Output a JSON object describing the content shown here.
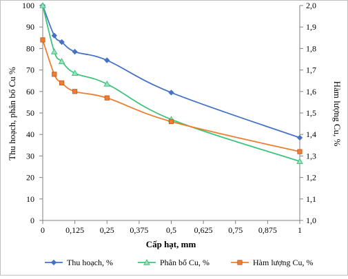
{
  "chart_data": {
    "type": "line",
    "xlabel": "Cấp hạt, mm",
    "ylabel": "Thu hoạch, phân bố Cu %",
    "y2label": "Hàm lượng Cu, %",
    "xlim": [
      0,
      1
    ],
    "ylim": [
      0,
      100
    ],
    "y2lim": [
      1.0,
      2.0
    ],
    "x_ticks": [
      "0",
      "0,125",
      "0,25",
      "0,375",
      "0,5",
      "0,625",
      "0,75",
      "0,875",
      "1"
    ],
    "y_ticks": [
      "0",
      "10",
      "20",
      "30",
      "40",
      "50",
      "60",
      "70",
      "80",
      "90",
      "100"
    ],
    "y2_ticks": [
      "1,0",
      "1,1",
      "1,2",
      "1,3",
      "1,4",
      "1,5",
      "1,6",
      "1,7",
      "1,8",
      "1,9",
      "2,0"
    ],
    "grid": false,
    "legend_position": "bottom",
    "series": [
      {
        "name": "Thu hoạch, %",
        "axis": "left",
        "color": "#4472C4",
        "marker": "diamond",
        "x": [
          0,
          0.045,
          0.074,
          0.125,
          0.25,
          0.5,
          1
        ],
        "y": [
          100,
          86,
          83,
          78.5,
          74.5,
          59.5,
          38.5
        ]
      },
      {
        "name": "Phân bố Cu, %",
        "axis": "left",
        "color": "#3CC47C",
        "marker": "triangle",
        "x": [
          0,
          0.045,
          0.074,
          0.125,
          0.25,
          0.5,
          1
        ],
        "y": [
          100,
          78.5,
          74,
          68.5,
          63.5,
          47,
          27.5
        ]
      },
      {
        "name": "Hàm lượng Cu, %",
        "axis": "right",
        "color": "#ED7D31",
        "marker": "square",
        "x": [
          0,
          0.045,
          0.074,
          0.125,
          0.25,
          0.5,
          1
        ],
        "y": [
          1.84,
          1.68,
          1.64,
          1.6,
          1.57,
          1.46,
          1.32
        ]
      }
    ]
  }
}
